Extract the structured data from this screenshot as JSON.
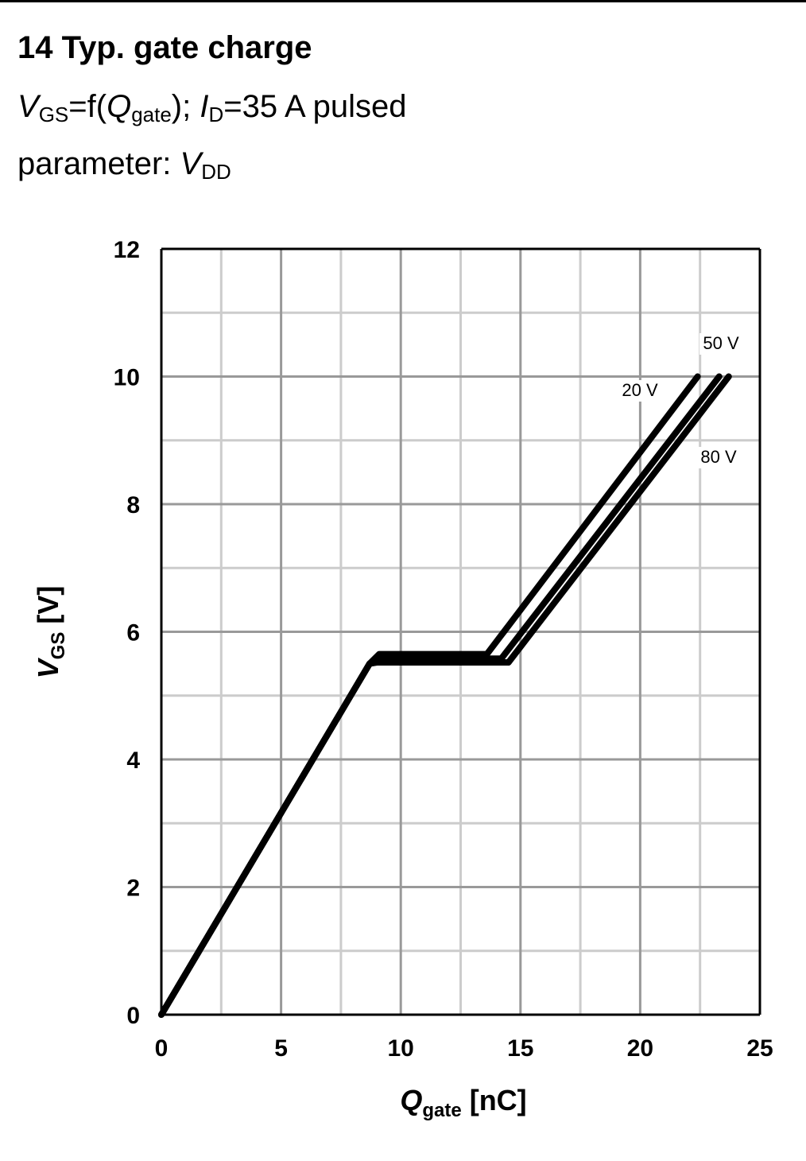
{
  "header": {
    "title": "14 Typ. gate charge",
    "formula": {
      "v": "V",
      "v_sub": "GS",
      "eq_f": "=f(",
      "q": "Q",
      "q_sub": "gate",
      "close": "); ",
      "i": "I",
      "i_sub": "D",
      "rest": "=35 A pulsed"
    },
    "param": {
      "prefix": "parameter: ",
      "v": "V",
      "v_sub": "DD"
    }
  },
  "chart_data": {
    "type": "line",
    "x_label": {
      "sym": "Q",
      "sub": "gate",
      "unit": " [nC]"
    },
    "y_label": {
      "sym": "V",
      "sub": "GS",
      "unit": " [V]"
    },
    "xlim": [
      0,
      25
    ],
    "ylim": [
      0,
      12
    ],
    "x_ticks": [
      0,
      5,
      10,
      15,
      20,
      25
    ],
    "y_ticks": [
      0,
      2,
      4,
      6,
      8,
      10,
      12
    ],
    "x_tick_labels": [
      "0",
      "5",
      "10",
      "15",
      "20",
      "25"
    ],
    "y_tick_labels": [
      "0",
      "2",
      "4",
      "6",
      "8",
      "10",
      "12"
    ],
    "grid": true,
    "series": [
      {
        "name": "20 V",
        "x": [
          0,
          8.7,
          9.1,
          13.6,
          22.4
        ],
        "y": [
          0,
          5.5,
          5.65,
          5.65,
          10.0
        ]
      },
      {
        "name": "50 V",
        "x": [
          0,
          8.7,
          9.0,
          14.2,
          23.3
        ],
        "y": [
          0,
          5.5,
          5.58,
          5.58,
          10.0
        ]
      },
      {
        "name": "80 V",
        "x": [
          0,
          8.7,
          9.0,
          14.5,
          23.7
        ],
        "y": [
          0,
          5.5,
          5.52,
          5.52,
          10.0
        ]
      }
    ],
    "annotations": [
      {
        "text": "20 V",
        "series": "20 V"
      },
      {
        "text": "50 V",
        "series": "50 V"
      },
      {
        "text": "80 V",
        "series": "80 V"
      }
    ],
    "line_color": "#000000",
    "grid_major_color": "#999999",
    "grid_minor_color": "#cccccc"
  }
}
